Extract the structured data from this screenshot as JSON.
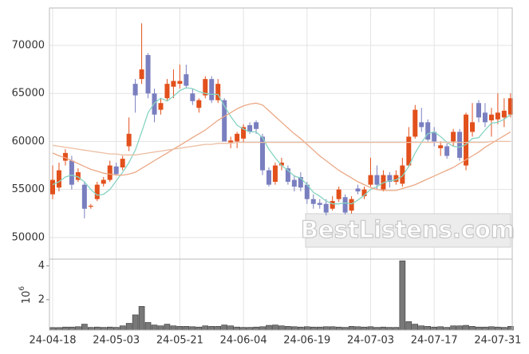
{
  "chart_data": [
    {
      "type": "candlestick",
      "open": [
        54500,
        55200,
        58000,
        58000,
        56000,
        55500,
        53200,
        54000,
        55600,
        56000,
        57400,
        57300,
        59500,
        66000,
        66500,
        69000,
        65000,
        63300,
        64500,
        65700,
        66000,
        67000,
        65000,
        63500,
        64800,
        66500,
        64300,
        64300,
        59900,
        60000,
        60300,
        61700,
        62000,
        60500,
        57000,
        55800,
        57500,
        57200,
        56000,
        56300,
        55500,
        54000,
        53600,
        53500,
        53000,
        54000,
        54200,
        52800,
        55100,
        54300,
        55500,
        56500,
        55000,
        56500,
        55800,
        55600,
        57500,
        60500,
        62000,
        62000,
        61000,
        59300,
        59500,
        60000,
        61000,
        57500,
        61000,
        64000,
        63000,
        62200,
        62300,
        62500,
        62800
      ],
      "high": [
        57500,
        57800,
        59200,
        58500,
        57200,
        55800,
        53500,
        55800,
        56300,
        58000,
        57800,
        58500,
        62500,
        66500,
        72300,
        69200,
        65500,
        64500,
        66500,
        67500,
        68000,
        68000,
        65500,
        64500,
        66800,
        66800,
        66500,
        64500,
        60500,
        61000,
        61800,
        62000,
        62200,
        60800,
        57300,
        57800,
        58300,
        57500,
        56500,
        56800,
        55800,
        54500,
        54000,
        54000,
        54300,
        55300,
        54500,
        54300,
        55500,
        55300,
        58300,
        57500,
        57000,
        56800,
        57000,
        58300,
        61500,
        63800,
        63500,
        62300,
        61500,
        60000,
        59800,
        61300,
        61300,
        63000,
        64000,
        64300,
        64000,
        63500,
        65000,
        64500,
        65000
      ],
      "low": [
        54000,
        54800,
        57500,
        55000,
        55800,
        52000,
        53000,
        53800,
        55300,
        55800,
        56500,
        57000,
        59000,
        63000,
        66000,
        64500,
        62000,
        62800,
        64200,
        64500,
        65500,
        65500,
        63800,
        63000,
        64500,
        64000,
        64000,
        60000,
        59300,
        59300,
        59900,
        60800,
        60800,
        56500,
        55300,
        55500,
        57000,
        55500,
        54800,
        54800,
        53500,
        53000,
        53000,
        52300,
        52800,
        53700,
        52400,
        52500,
        54500,
        54000,
        55300,
        55000,
        54800,
        55200,
        55500,
        55300,
        57300,
        60300,
        61000,
        60000,
        59500,
        58500,
        58200,
        59500,
        58000,
        57000,
        60500,
        62000,
        61500,
        60500,
        61800,
        61500,
        62500
      ],
      "close": [
        56000,
        57000,
        58800,
        55500,
        56800,
        53000,
        53300,
        55500,
        56000,
        57500,
        56600,
        58200,
        60800,
        64800,
        67500,
        65000,
        62800,
        64000,
        66000,
        66300,
        66300,
        65800,
        64200,
        64300,
        66500,
        64300,
        66000,
        60000,
        60100,
        60800,
        61500,
        61000,
        61300,
        57000,
        55500,
        57500,
        57800,
        55800,
        55300,
        55200,
        54000,
        53500,
        53400,
        52600,
        53800,
        55000,
        52600,
        54000,
        54800,
        55000,
        56500,
        55500,
        56500,
        55800,
        56500,
        57500,
        60500,
        63300,
        61500,
        60200,
        60000,
        59600,
        58500,
        61000,
        58300,
        62800,
        62000,
        62500,
        62000,
        62800,
        63000,
        63200,
        64500
      ],
      "up_color": "#e2501c",
      "down_color": "#7a7fc0",
      "lines": [
        {
          "color": "#86d4c2",
          "values": [
            55500,
            55800,
            56300,
            56500,
            56300,
            55800,
            55000,
            54400,
            54500,
            55000,
            55900,
            56800,
            57800,
            59100,
            61000,
            63000,
            64000,
            64500,
            64200,
            64700,
            65300,
            65600,
            65500,
            65200,
            65000,
            64900,
            64900,
            63700,
            62600,
            61700,
            61300,
            61000,
            61000,
            60400,
            59200,
            58300,
            57500,
            57000,
            56400,
            56200,
            55500,
            54700,
            54300,
            53800,
            53500,
            53500,
            53600,
            53500,
            53900,
            54400,
            55000,
            55300,
            55700,
            55900,
            56000,
            56400,
            57400,
            58800,
            59900,
            60800,
            61000,
            60500,
            59900,
            59500,
            59400,
            59700,
            60300,
            60400,
            61200,
            61900,
            62000,
            62300,
            62800
          ]
        },
        {
          "color": "#eba886",
          "values": [
            58800,
            58500,
            58300,
            58000,
            57700,
            57400,
            57100,
            56900,
            56700,
            56600,
            56500,
            56500,
            56600,
            56800,
            57200,
            57600,
            58000,
            58400,
            58800,
            59200,
            59600,
            60000,
            60400,
            60800,
            61200,
            61700,
            62200,
            62600,
            63000,
            63400,
            63700,
            63900,
            64000,
            63800,
            63200,
            62600,
            62000,
            61400,
            60800,
            60300,
            59700,
            59100,
            58500,
            58000,
            57500,
            57000,
            56600,
            56200,
            55800,
            55500,
            55200,
            55000,
            54900,
            54900,
            54900,
            55100,
            55300,
            55500,
            55800,
            56100,
            56400,
            56700,
            57000,
            57300,
            57700,
            58100,
            58500,
            58900,
            59400,
            59800,
            60200,
            60600,
            61000
          ]
        },
        {
          "color": "#ecbea2",
          "values": [
            59600,
            59500,
            59400,
            59300,
            59200,
            59100,
            59000,
            58900,
            58800,
            58700,
            58700,
            58600,
            58600,
            58600,
            58700,
            58800,
            58900,
            59000,
            59100,
            59200,
            59300,
            59400,
            59500,
            59600,
            59700,
            59700,
            59800,
            59800,
            59800,
            59900,
            59900,
            59900,
            59900,
            59900,
            59900,
            59900,
            59900,
            59900,
            59900,
            59900,
            59900,
            59900,
            59900,
            59900,
            59900,
            59900,
            59900,
            59900,
            59900,
            59900,
            59900,
            59900,
            59900,
            59900,
            59900,
            59900,
            59900,
            59900,
            59900,
            59900,
            59900,
            59900,
            59900,
            59900,
            59900,
            59900,
            59900,
            59900,
            59900,
            60000,
            60000,
            60000,
            60000
          ]
        }
      ],
      "ylim": [
        47750,
        73900
      ],
      "yticks": [
        50000,
        55000,
        60000,
        65000,
        70000
      ],
      "grid": true,
      "watermark": "BestListens.com"
    },
    {
      "type": "bar",
      "categories": [
        "24-04-18",
        null,
        null,
        null,
        null,
        null,
        null,
        null,
        null,
        null,
        "24-05-03",
        null,
        null,
        null,
        null,
        null,
        null,
        null,
        null,
        null,
        "24-05-21",
        null,
        null,
        null,
        null,
        null,
        null,
        null,
        null,
        null,
        "24-06-04",
        null,
        null,
        null,
        null,
        null,
        null,
        null,
        null,
        null,
        "24-06-19",
        null,
        null,
        null,
        null,
        null,
        null,
        null,
        null,
        null,
        "24-07-03",
        null,
        null,
        null,
        null,
        null,
        null,
        null,
        null,
        null,
        "24-07-17",
        null,
        null,
        null,
        null,
        null,
        null,
        null,
        null,
        null,
        "24-07-31",
        null,
        null
      ],
      "values": [
        0.35,
        0.35,
        0.38,
        0.38,
        0.4,
        0.55,
        0.36,
        0.38,
        0.36,
        0.38,
        0.36,
        0.45,
        0.6,
        1.1,
        1.6,
        0.65,
        0.5,
        0.45,
        0.55,
        0.45,
        0.42,
        0.42,
        0.4,
        0.38,
        0.45,
        0.42,
        0.42,
        0.5,
        0.45,
        0.38,
        0.36,
        0.36,
        0.38,
        0.4,
        0.48,
        0.5,
        0.45,
        0.42,
        0.4,
        0.38,
        0.4,
        0.38,
        0.38,
        0.4,
        0.4,
        0.38,
        0.36,
        0.42,
        0.4,
        0.38,
        0.4,
        0.36,
        0.38,
        0.36,
        0.36,
        4.3,
        0.7,
        0.55,
        0.45,
        0.42,
        0.38,
        0.4,
        0.36,
        0.45,
        0.45,
        0.48,
        0.42,
        0.38,
        0.38,
        0.4,
        0.38,
        0.36,
        0.42
      ],
      "color": "#787878",
      "ylim": [
        0.2,
        4.4
      ],
      "yticks": [
        2,
        4
      ],
      "grid": true,
      "scale_label": {
        "base": "10",
        "exponent": "6"
      }
    }
  ]
}
